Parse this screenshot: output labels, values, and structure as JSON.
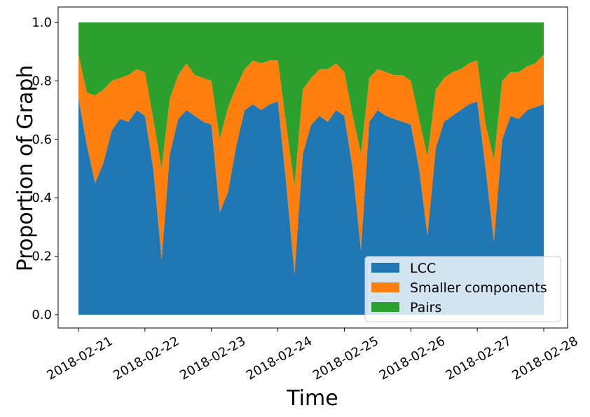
{
  "chart_data": {
    "type": "area",
    "stacked": true,
    "xlabel": "Time",
    "ylabel": "Proportion of Graph",
    "xlim": [
      "2018-02-21",
      "2018-02-28"
    ],
    "ylim": [
      -0.05,
      1.05
    ],
    "x_ticks": [
      "2018-02-21",
      "2018-02-22",
      "2018-02-23",
      "2018-02-24",
      "2018-02-25",
      "2018-02-26",
      "2018-02-27",
      "2018-02-28"
    ],
    "y_ticks": [
      "0.0",
      "0.2",
      "0.4",
      "0.6",
      "0.8",
      "1.0"
    ],
    "legend_position": "bottom-right",
    "x": [
      "2018-02-21 00:00",
      "2018-02-21 03:00",
      "2018-02-21 06:00",
      "2018-02-21 09:00",
      "2018-02-21 12:00",
      "2018-02-21 15:00",
      "2018-02-21 18:00",
      "2018-02-21 21:00",
      "2018-02-22 00:00",
      "2018-02-22 03:00",
      "2018-02-22 06:00",
      "2018-02-22 09:00",
      "2018-02-22 12:00",
      "2018-02-22 15:00",
      "2018-02-22 18:00",
      "2018-02-22 21:00",
      "2018-02-23 00:00",
      "2018-02-23 03:00",
      "2018-02-23 06:00",
      "2018-02-23 09:00",
      "2018-02-23 12:00",
      "2018-02-23 15:00",
      "2018-02-23 18:00",
      "2018-02-23 21:00",
      "2018-02-24 00:00",
      "2018-02-24 03:00",
      "2018-02-24 06:00",
      "2018-02-24 09:00",
      "2018-02-24 12:00",
      "2018-02-24 15:00",
      "2018-02-24 18:00",
      "2018-02-24 21:00",
      "2018-02-25 00:00",
      "2018-02-25 03:00",
      "2018-02-25 06:00",
      "2018-02-25 09:00",
      "2018-02-25 12:00",
      "2018-02-25 15:00",
      "2018-02-25 18:00",
      "2018-02-25 21:00",
      "2018-02-26 00:00",
      "2018-02-26 03:00",
      "2018-02-26 06:00",
      "2018-02-26 09:00",
      "2018-02-26 12:00",
      "2018-02-26 15:00",
      "2018-02-26 18:00",
      "2018-02-26 21:00",
      "2018-02-27 00:00",
      "2018-02-27 03:00",
      "2018-02-27 06:00",
      "2018-02-27 09:00",
      "2018-02-27 12:00",
      "2018-02-27 15:00",
      "2018-02-27 18:00",
      "2018-02-27 21:00",
      "2018-02-28 00:00"
    ],
    "series": [
      {
        "name": "LCC",
        "color": "#1f77b4",
        "values": [
          0.74,
          0.58,
          0.45,
          0.52,
          0.63,
          0.67,
          0.66,
          0.7,
          0.68,
          0.5,
          0.19,
          0.55,
          0.67,
          0.7,
          0.68,
          0.66,
          0.65,
          0.35,
          0.42,
          0.58,
          0.7,
          0.72,
          0.7,
          0.72,
          0.73,
          0.45,
          0.14,
          0.55,
          0.65,
          0.68,
          0.66,
          0.7,
          0.68,
          0.5,
          0.22,
          0.66,
          0.7,
          0.68,
          0.67,
          0.66,
          0.65,
          0.5,
          0.27,
          0.57,
          0.66,
          0.68,
          0.7,
          0.72,
          0.73,
          0.5,
          0.25,
          0.6,
          0.68,
          0.67,
          0.7,
          0.71,
          0.72
        ]
      },
      {
        "name": "Smaller components",
        "color": "#ff7f0e",
        "values": [
          0.15,
          0.18,
          0.3,
          0.25,
          0.17,
          0.14,
          0.16,
          0.14,
          0.15,
          0.17,
          0.31,
          0.19,
          0.15,
          0.16,
          0.14,
          0.15,
          0.15,
          0.25,
          0.29,
          0.2,
          0.14,
          0.15,
          0.16,
          0.15,
          0.14,
          0.2,
          0.3,
          0.22,
          0.16,
          0.16,
          0.18,
          0.16,
          0.15,
          0.18,
          0.33,
          0.15,
          0.14,
          0.15,
          0.15,
          0.16,
          0.15,
          0.17,
          0.27,
          0.2,
          0.15,
          0.15,
          0.14,
          0.14,
          0.14,
          0.15,
          0.28,
          0.2,
          0.15,
          0.16,
          0.15,
          0.15,
          0.17
        ]
      },
      {
        "name": "Pairs",
        "color": "#2ca02c",
        "values": [
          0.11,
          0.24,
          0.25,
          0.23,
          0.2,
          0.19,
          0.18,
          0.16,
          0.17,
          0.33,
          0.5,
          0.26,
          0.18,
          0.14,
          0.18,
          0.19,
          0.2,
          0.4,
          0.29,
          0.22,
          0.16,
          0.13,
          0.14,
          0.13,
          0.13,
          0.35,
          0.56,
          0.23,
          0.19,
          0.16,
          0.16,
          0.14,
          0.17,
          0.32,
          0.45,
          0.19,
          0.16,
          0.17,
          0.18,
          0.18,
          0.2,
          0.33,
          0.46,
          0.23,
          0.19,
          0.17,
          0.16,
          0.14,
          0.13,
          0.35,
          0.47,
          0.2,
          0.17,
          0.17,
          0.15,
          0.14,
          0.11
        ]
      }
    ]
  }
}
